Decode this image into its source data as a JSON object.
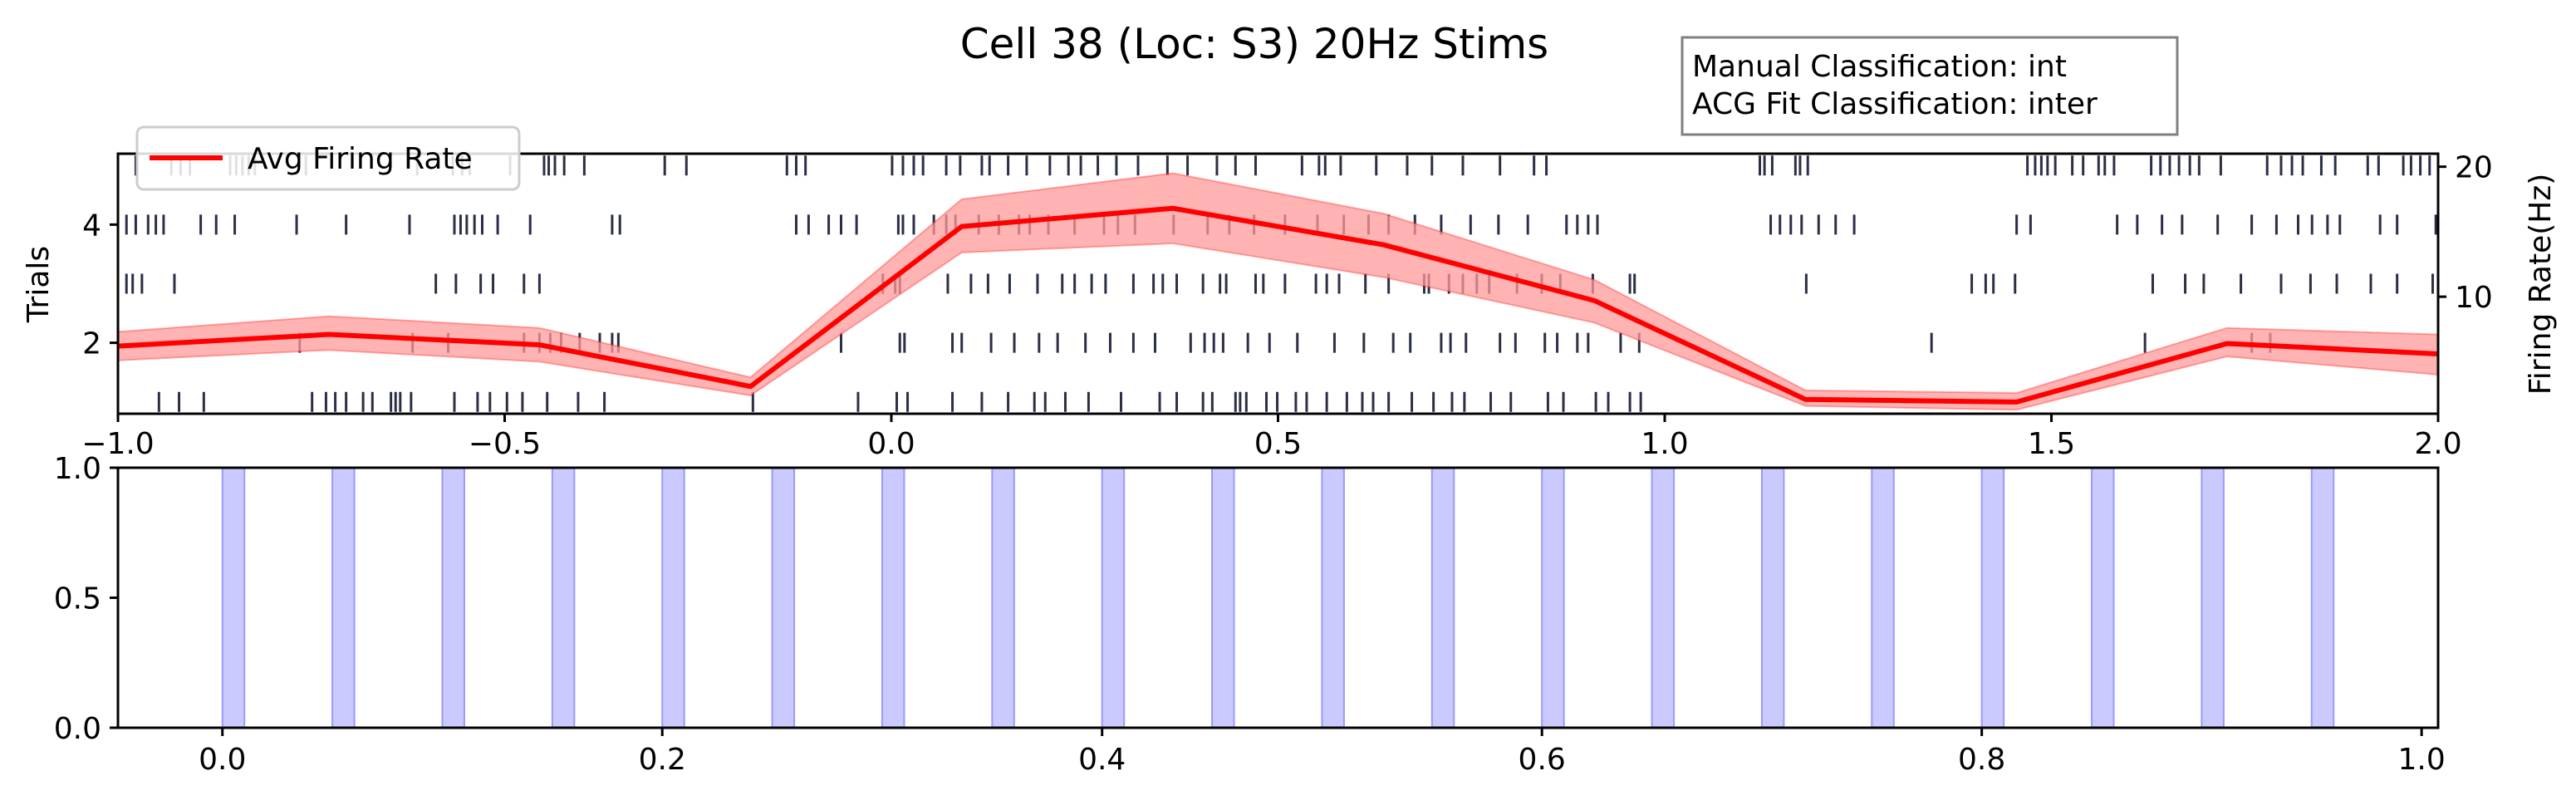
{
  "title": "Cell 38 (Loc: S3) 20Hz Stims",
  "info_box": {
    "line1": "Manual Classification: int",
    "line2": "ACG Fit Classification: inter"
  },
  "colors": {
    "raster": "#2b2f45",
    "rate_line": "#ff0000",
    "rate_band": "#ff9a9a",
    "stim": "#b3b3ff"
  },
  "chart_data": [
    {
      "type": "scatter",
      "subtype": "raster-with-rate",
      "ylabel": "Trials",
      "y2label": "Firing Rate(Hz)",
      "xlim": [
        -1.0,
        2.0
      ],
      "ylim": [
        0.8,
        5.2
      ],
      "y2lim": [
        1,
        21
      ],
      "xticks": [
        -1.0,
        -0.5,
        0.0,
        0.5,
        1.0,
        1.5,
        2.0
      ],
      "xticklabels": [
        "−1.0",
        "−0.5",
        "0.0",
        "0.5",
        "1.0",
        "1.5",
        "2.0"
      ],
      "yticks": [
        2,
        4
      ],
      "y2ticks": [
        10,
        20
      ],
      "legend": {
        "label": "Avg Firing Rate",
        "position": "top-left"
      },
      "rate": {
        "x": [
          -1.0,
          -0.727,
          -0.455,
          -0.182,
          0.091,
          0.364,
          0.636,
          0.909,
          1.182,
          1.455,
          1.727,
          2.0
        ],
        "y": [
          6.2,
          7.1,
          6.3,
          3.1,
          15.4,
          16.8,
          14.0,
          9.7,
          2.1,
          1.9,
          6.4,
          5.6
        ],
        "lower": [
          5.1,
          5.9,
          5.0,
          2.4,
          13.4,
          14.1,
          11.5,
          8.0,
          1.6,
          1.3,
          5.4,
          4.0
        ],
        "upper": [
          7.3,
          8.5,
          7.6,
          3.8,
          17.5,
          19.5,
          16.4,
          11.3,
          2.8,
          2.6,
          7.6,
          7.1
        ]
      },
      "trials": [
        {
          "trial": 1,
          "spikes": [
            -0.947,
            -0.921,
            -0.889,
            -0.749,
            -0.731,
            -0.719,
            -0.705,
            -0.683,
            -0.671,
            -0.647,
            -0.641,
            -0.635,
            -0.621,
            -0.565,
            -0.535,
            -0.519,
            -0.497,
            -0.477,
            -0.445,
            -0.405,
            -0.371,
            -0.179,
            -0.043,
            0.007,
            0.021,
            0.079,
            0.117,
            0.151,
            0.185,
            0.199,
            0.225,
            0.255,
            0.297,
            0.347,
            0.369,
            0.403,
            0.415,
            0.445,
            0.451,
            0.459,
            0.485,
            0.499,
            0.523,
            0.537,
            0.563,
            0.589,
            0.609,
            0.623,
            0.643,
            0.673,
            0.701,
            0.725,
            0.741,
            0.775,
            0.801,
            0.849,
            0.869,
            0.911,
            0.927,
            0.955,
            0.969
          ]
        },
        {
          "trial": 2,
          "spikes": [
            -0.765,
            -0.619,
            -0.573,
            -0.475,
            -0.455,
            -0.441,
            -0.427,
            -0.403,
            -0.377,
            -0.361,
            -0.353,
            -0.065,
            0.011,
            0.017,
            0.079,
            0.091,
            0.129,
            0.159,
            0.191,
            0.215,
            0.251,
            0.283,
            0.313,
            0.341,
            0.387,
            0.405,
            0.417,
            0.429,
            0.461,
            0.489,
            0.525,
            0.573,
            0.611,
            0.649,
            0.671,
            0.711,
            0.723,
            0.743,
            0.787,
            0.807,
            0.845,
            0.861,
            0.887,
            0.901,
            0.943,
            0.967,
            1.345,
            1.621,
            1.759,
            1.783
          ]
        },
        {
          "trial": 3,
          "spikes": [
            -0.989,
            -0.981,
            -0.969,
            -0.927,
            -0.589,
            -0.563,
            -0.531,
            -0.515,
            -0.475,
            -0.455,
            -0.011,
            0.005,
            0.011,
            0.073,
            0.103,
            0.125,
            0.153,
            0.189,
            0.221,
            0.237,
            0.259,
            0.277,
            0.313,
            0.339,
            0.351,
            0.369,
            0.403,
            0.425,
            0.433,
            0.471,
            0.481,
            0.509,
            0.549,
            0.563,
            0.579,
            0.613,
            0.643,
            0.689,
            0.695,
            0.721,
            0.739,
            0.757,
            0.773,
            0.809,
            0.841,
            0.865,
            0.907,
            0.955,
            0.961,
            1.183,
            1.397,
            1.415,
            1.425,
            1.453,
            1.631,
            1.673,
            1.697,
            1.745,
            1.797,
            1.835,
            1.869,
            1.913,
            1.947,
            1.993
          ]
        },
        {
          "trial": 4,
          "spikes": [
            -0.989,
            -0.977,
            -0.961,
            -0.951,
            -0.941,
            -0.893,
            -0.873,
            -0.849,
            -0.769,
            -0.705,
            -0.623,
            -0.565,
            -0.557,
            -0.549,
            -0.539,
            -0.529,
            -0.509,
            -0.467,
            -0.361,
            -0.351,
            -0.123,
            -0.107,
            -0.081,
            -0.065,
            -0.045,
            0.009,
            0.015,
            0.029,
            0.055,
            0.071,
            0.083,
            0.113,
            0.139,
            0.165,
            0.179,
            0.203,
            0.237,
            0.275,
            0.293,
            0.315,
            0.365,
            0.409,
            0.437,
            0.469,
            0.509,
            0.551,
            0.585,
            0.617,
            0.643,
            0.677,
            0.711,
            0.749,
            0.785,
            0.823,
            0.873,
            0.887,
            0.901,
            0.913,
            1.137,
            1.149,
            1.163,
            1.177,
            1.199,
            1.221,
            1.245,
            1.455,
            1.473,
            1.585,
            1.611,
            1.643,
            1.669,
            1.715,
            1.759,
            1.791,
            1.819,
            1.837,
            1.857,
            1.873,
            1.925,
            1.947,
            1.997
          ]
        },
        {
          "trial": 5,
          "spikes": [
            -0.977,
            -0.931,
            -0.919,
            -0.907,
            -0.855,
            -0.847,
            -0.839,
            -0.831,
            -0.823,
            -0.757,
            -0.613,
            -0.567,
            -0.555,
            -0.545,
            -0.493,
            -0.449,
            -0.443,
            -0.435,
            -0.423,
            -0.397,
            -0.293,
            -0.265,
            -0.135,
            -0.123,
            -0.111,
            0.001,
            0.015,
            0.029,
            0.041,
            0.071,
            0.089,
            0.117,
            0.127,
            0.151,
            0.175,
            0.205,
            0.229,
            0.245,
            0.267,
            0.291,
            0.319,
            0.357,
            0.383,
            0.421,
            0.445,
            0.471,
            0.531,
            0.553,
            0.561,
            0.581,
            0.627,
            0.667,
            0.699,
            0.739,
            0.787,
            0.831,
            0.847,
            1.123,
            1.129,
            1.139,
            1.169,
            1.175,
            1.185,
            1.469,
            1.479,
            1.487,
            1.495,
            1.505,
            1.527,
            1.541,
            1.561,
            1.569,
            1.581,
            1.629,
            1.641,
            1.653,
            1.665,
            1.679,
            1.691,
            1.719,
            1.779,
            1.797,
            1.811,
            1.825,
            1.849,
            1.867,
            1.909,
            1.923,
            1.955,
            1.965,
            1.977,
            1.989
          ]
        }
      ]
    },
    {
      "type": "bar",
      "subtype": "stimulus-spans",
      "xlim": [
        -0.0475,
        1.0075
      ],
      "ylim": [
        0.0,
        1.0
      ],
      "xticks": [
        0.0,
        0.2,
        0.4,
        0.6,
        0.8,
        1.0
      ],
      "xticklabels": [
        "0.0",
        "0.2",
        "0.4",
        "0.6",
        "0.8",
        "1.0"
      ],
      "yticks": [
        0.0,
        0.5,
        1.0
      ],
      "yticklabels": [
        "0.0",
        "0.5",
        "1.0"
      ],
      "stim_duration": 0.01,
      "stim_onsets": [
        0.0,
        0.05,
        0.1,
        0.15,
        0.2,
        0.25,
        0.3,
        0.35,
        0.4,
        0.45,
        0.5,
        0.55,
        0.6,
        0.65,
        0.7,
        0.75,
        0.8,
        0.85,
        0.9,
        0.95
      ]
    }
  ]
}
